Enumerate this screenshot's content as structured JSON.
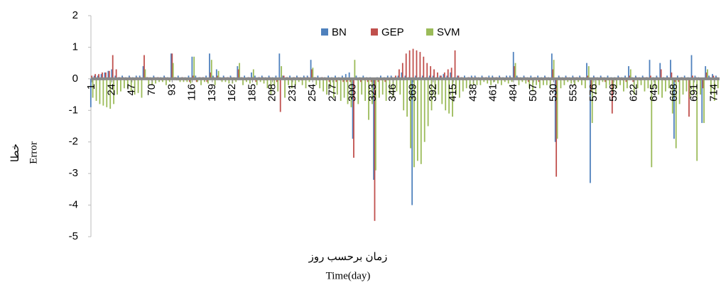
{
  "chart_data": {
    "type": "bar",
    "x_title_fa": "زمان برحسب روز",
    "x_title": "Time(day)",
    "y_title_fa": "خطا",
    "y_title": "Error",
    "x": [
      1,
      5,
      9,
      13,
      17,
      21,
      25,
      29,
      33,
      37,
      41,
      45,
      49,
      53,
      57,
      61,
      65,
      69,
      73,
      77,
      81,
      85,
      89,
      93,
      97,
      101,
      105,
      109,
      113,
      117,
      121,
      125,
      129,
      133,
      137,
      141,
      145,
      149,
      153,
      157,
      161,
      165,
      169,
      173,
      177,
      181,
      185,
      189,
      193,
      197,
      201,
      205,
      209,
      213,
      217,
      221,
      225,
      229,
      233,
      237,
      241,
      245,
      249,
      253,
      257,
      261,
      265,
      269,
      273,
      277,
      281,
      285,
      289,
      293,
      297,
      301,
      305,
      309,
      313,
      317,
      321,
      325,
      329,
      333,
      337,
      341,
      345,
      349,
      353,
      357,
      361,
      365,
      369,
      373,
      377,
      381,
      385,
      389,
      393,
      397,
      401,
      405,
      409,
      413,
      417,
      421,
      425,
      429,
      433,
      437,
      441,
      445,
      449,
      453,
      457,
      461,
      465,
      469,
      473,
      477,
      481,
      485,
      489,
      493,
      497,
      501,
      505,
      509,
      513,
      517,
      521,
      525,
      529,
      533,
      537,
      541,
      545,
      549,
      553,
      557,
      561,
      565,
      569,
      573,
      577,
      581,
      585,
      589,
      593,
      597,
      601,
      605,
      609,
      613,
      617,
      621,
      625,
      629,
      633,
      637,
      641,
      645,
      649,
      653,
      657,
      661,
      665,
      669,
      673,
      677,
      681,
      685,
      689,
      693,
      697,
      701,
      705,
      709,
      713,
      717
    ],
    "series": [
      {
        "name": "BN",
        "color": "#4f81bd",
        "values": [
          -0.9,
          0.1,
          0.1,
          0.15,
          0.2,
          0.25,
          0.3,
          0.1,
          0.05,
          0.1,
          0.05,
          0.1,
          0.05,
          0.1,
          0.1,
          0.4,
          0.05,
          0.05,
          0.1,
          0.05,
          0.05,
          0.1,
          0.05,
          0.8,
          0.05,
          0.1,
          0.05,
          0.05,
          0.1,
          0.7,
          0.1,
          0.05,
          0.05,
          0.1,
          0.8,
          0.1,
          0.3,
          0.05,
          0.1,
          0.05,
          0.1,
          0.05,
          0.4,
          0.05,
          0.1,
          0.05,
          0.2,
          0.1,
          0.05,
          0.1,
          0.05,
          0.1,
          0.05,
          0.1,
          0.8,
          0.1,
          0.05,
          0.1,
          0.05,
          0.1,
          0.05,
          0.1,
          0.1,
          0.6,
          0.05,
          0.1,
          0.05,
          0.05,
          0.1,
          0.05,
          0.1,
          0.05,
          0.1,
          0.15,
          0.2,
          -1.9,
          0.1,
          0.05,
          0.1,
          0.05,
          0.05,
          -3.2,
          0.05,
          0.1,
          0.05,
          0.1,
          0.1,
          0.05,
          0.1,
          0.2,
          0.1,
          0.05,
          -4.0,
          0.1,
          0.05,
          0.1,
          0.05,
          0.1,
          0.1,
          0.05,
          0.1,
          0.15,
          0.1,
          0.2,
          0.05,
          0.1,
          0.05,
          0.1,
          0.05,
          0.1,
          0.1,
          0.05,
          0.1,
          0.05,
          0.1,
          0.1,
          0.05,
          0.1,
          0.05,
          0.1,
          0.1,
          0.85,
          0.1,
          0.05,
          0.1,
          0.05,
          0.1,
          0.05,
          0.1,
          0.05,
          0.1,
          0.05,
          0.8,
          -2.0,
          0.1,
          0.05,
          0.1,
          0.05,
          0.1,
          0.05,
          0.1,
          0.05,
          0.5,
          -3.3,
          0.1,
          0.05,
          0.1,
          0.05,
          0.1,
          0.05,
          0.05,
          0.1,
          0.05,
          0.1,
          0.4,
          0.05,
          0.1,
          0.05,
          0.1,
          0.05,
          0.6,
          0.05,
          0.1,
          0.5,
          0.05,
          0.1,
          0.6,
          -1.9,
          0.1,
          0.05,
          0.1,
          0.05,
          0.75,
          0.1,
          0.05,
          -1.4,
          0.4,
          0.1,
          0.15,
          0.1
        ]
      },
      {
        "name": "GEP",
        "color": "#c0504d",
        "values": [
          0.1,
          0.15,
          0.15,
          0.2,
          0.2,
          0.25,
          0.75,
          0.3,
          0.05,
          0.05,
          -0.05,
          0.05,
          -0.05,
          0.05,
          0.05,
          0.75,
          0.05,
          -0.05,
          0.05,
          0.05,
          -0.05,
          0.05,
          -0.05,
          0.8,
          0.05,
          -0.05,
          0.05,
          -0.05,
          -0.1,
          0.1,
          -0.1,
          0.05,
          0.05,
          -0.1,
          0.2,
          0.05,
          0.1,
          -0.05,
          0.05,
          0.05,
          0.05,
          -0.05,
          0.3,
          0.05,
          -0.05,
          0.05,
          0.05,
          -0.1,
          0.05,
          0.05,
          -0.05,
          0.05,
          -0.05,
          -0.1,
          -1.05,
          0.1,
          0.05,
          -0.05,
          0.05,
          0.05,
          -0.05,
          0.05,
          0.05,
          0.3,
          0.05,
          -0.05,
          0.05,
          -0.05,
          -0.1,
          -0.05,
          -0.1,
          -0.05,
          -0.1,
          -0.1,
          -0.1,
          -2.5,
          -0.05,
          -0.1,
          -0.05,
          -0.1,
          -0.1,
          -4.5,
          -0.1,
          -0.05,
          -0.1,
          -0.05,
          0.05,
          0.1,
          0.3,
          0.5,
          0.8,
          0.9,
          0.95,
          0.9,
          0.85,
          0.7,
          0.5,
          0.4,
          0.3,
          0.2,
          0.1,
          0.2,
          0.3,
          0.35,
          0.9,
          0.1,
          0.05,
          -0.05,
          0.05,
          0.05,
          0.05,
          -0.05,
          0.05,
          0.05,
          -0.05,
          0.05,
          0.05,
          0.05,
          -0.05,
          0.05,
          0.05,
          0.4,
          0.05,
          -0.05,
          0.05,
          -0.1,
          -0.05,
          0.05,
          -0.1,
          -0.05,
          0.05,
          -0.05,
          0.3,
          -3.1,
          0.05,
          -0.05,
          0.05,
          -0.05,
          0.05,
          0.05,
          0.05,
          -0.05,
          0.1,
          -0.4,
          0.05,
          -0.05,
          0.05,
          -0.1,
          -0.05,
          -1.1,
          -0.05,
          0.05,
          -0.05,
          -0.1,
          0.1,
          -0.1,
          0.05,
          -0.05,
          0.05,
          0.05,
          0.1,
          -0.05,
          0.05,
          0.3,
          -0.05,
          0.05,
          0.2,
          -0.1,
          -0.1,
          0.05,
          -0.05,
          -1.2,
          0.1,
          0.05,
          -0.05,
          -0.3,
          0.2,
          0.05,
          0.1,
          0.05
        ]
      },
      {
        "name": "SVM",
        "color": "#9bbb59",
        "values": [
          -0.6,
          -0.7,
          -0.8,
          -0.85,
          -0.9,
          -0.95,
          -0.8,
          -0.5,
          -0.4,
          -0.3,
          -0.3,
          -0.4,
          -0.5,
          -0.45,
          -0.6,
          0.3,
          -0.2,
          -0.2,
          -0.15,
          -0.1,
          -0.1,
          -0.2,
          -0.1,
          0.5,
          -0.05,
          -0.1,
          -0.1,
          -0.1,
          -0.15,
          0.7,
          -0.1,
          -0.2,
          -0.1,
          -0.15,
          0.6,
          -0.2,
          0.25,
          -0.1,
          -0.1,
          -0.15,
          -0.15,
          -0.1,
          0.5,
          -0.2,
          -0.1,
          -0.15,
          0.3,
          -0.2,
          -0.1,
          -0.15,
          -0.3,
          -0.5,
          -0.2,
          -0.4,
          0.4,
          -0.6,
          -0.2,
          -0.3,
          -0.2,
          -0.1,
          -0.2,
          -0.3,
          -0.1,
          0.35,
          -0.2,
          -0.3,
          -0.4,
          -0.5,
          -0.3,
          -0.6,
          -0.5,
          -0.7,
          -0.6,
          -0.8,
          -0.9,
          0.6,
          -0.8,
          -0.5,
          -0.7,
          -1.3,
          -0.8,
          -2.9,
          -0.6,
          -0.5,
          -0.7,
          -0.5,
          -0.6,
          -0.4,
          -0.5,
          -1.0,
          -1.2,
          -2.2,
          -2.8,
          -2.6,
          -2.7,
          -2.0,
          -1.5,
          -1.0,
          -0.6,
          -0.5,
          -0.8,
          -1.0,
          -1.1,
          -1.2,
          -0.5,
          -0.6,
          -0.4,
          -0.3,
          -0.3,
          -0.2,
          -0.2,
          -0.2,
          -0.1,
          -0.15,
          -0.2,
          -0.1,
          -0.15,
          -0.2,
          -0.1,
          -0.15,
          -0.1,
          0.5,
          -0.2,
          -0.1,
          -0.15,
          -0.3,
          -0.4,
          -0.2,
          -0.3,
          -0.2,
          -0.2,
          -0.3,
          0.6,
          -1.9,
          -0.3,
          -0.2,
          -0.1,
          -0.15,
          -0.2,
          -0.1,
          -0.2,
          -0.3,
          0.4,
          -1.4,
          -0.5,
          -0.2,
          -0.1,
          -0.3,
          -0.2,
          -0.4,
          -0.3,
          -0.2,
          -0.4,
          -0.3,
          0.3,
          -0.5,
          -0.3,
          -0.2,
          -0.4,
          -0.3,
          -2.8,
          -0.3,
          -0.5,
          -0.6,
          -0.4,
          -0.3,
          -1.1,
          -2.2,
          -0.8,
          -0.5,
          -0.4,
          -0.6,
          -0.5,
          -2.6,
          -0.5,
          -1.4,
          0.3,
          -0.5,
          -0.7,
          -0.3
        ]
      }
    ],
    "xlim": [
      0,
      720
    ],
    "xticks": [
      1,
      24,
      47,
      70,
      93,
      116,
      139,
      162,
      185,
      208,
      231,
      254,
      277,
      300,
      323,
      346,
      369,
      392,
      415,
      438,
      461,
      484,
      507,
      530,
      553,
      576,
      599,
      622,
      645,
      668,
      691,
      714
    ],
    "ylim": [
      -5,
      2
    ],
    "yticks": [
      -5,
      -4,
      -3,
      -2,
      -1,
      0,
      1,
      2
    ],
    "grid": false
  }
}
